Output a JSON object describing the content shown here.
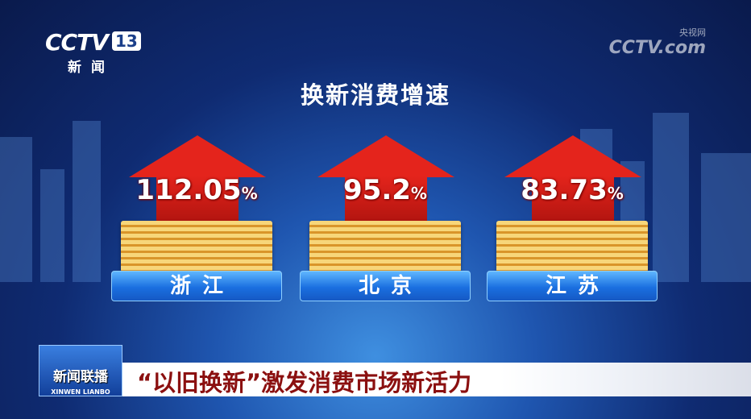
{
  "channel_logo": {
    "brand": "CCTV",
    "number": "13",
    "name": "新闻"
  },
  "watermark": {
    "brand": "CCTV.com",
    "name": "央视网"
  },
  "infographic": {
    "title": "换新消费增速",
    "items": [
      {
        "region": "浙江",
        "value": "112.05",
        "unit": "%"
      },
      {
        "region": "北京",
        "value": "95.2",
        "unit": "%"
      },
      {
        "region": "江苏",
        "value": "83.73",
        "unit": "%"
      }
    ],
    "colors": {
      "arrow": "#e4241c",
      "label_box": "#1a6fe0",
      "gold": "#f7d67a"
    }
  },
  "program": {
    "name": "新闻联播",
    "name_en": "XINWEN LIANBO"
  },
  "headline": "“以旧换新”激发消费市场新活力"
}
